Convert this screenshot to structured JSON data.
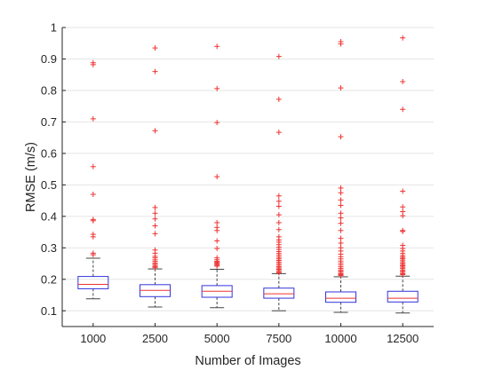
{
  "chart_data": {
    "type": "box",
    "xlabel": "Number of Images",
    "ylabel": "RMSE (m/s)",
    "ylim": [
      0.05,
      1.0
    ],
    "yticks": [
      0.1,
      0.2,
      0.3,
      0.4,
      0.5,
      0.6,
      0.7,
      0.8,
      0.9,
      1
    ],
    "ytick_labels": [
      "0.1",
      "0.2",
      "0.3",
      "0.4",
      "0.5",
      "0.6",
      "0.7",
      "0.8",
      "0.9",
      "1"
    ],
    "grid": "horizontal",
    "categories": [
      "1000",
      "2500",
      "5000",
      "7500",
      "10000",
      "12500"
    ],
    "colors": {
      "box": "#3333dd",
      "median": "#ee3333",
      "whisker": "#444444",
      "outlier": "#ee3333",
      "grid": "#e5e5e5",
      "axis": "#262626"
    },
    "boxes": [
      {
        "category": "1000",
        "q1": 0.17,
        "median": 0.184,
        "q3": 0.209,
        "whisker_low": 0.138,
        "whisker_high": 0.267,
        "outliers": [
          0.888,
          0.882,
          0.71,
          0.558,
          0.47,
          0.39,
          0.386,
          0.343,
          0.335,
          0.283,
          0.278
        ]
      },
      {
        "category": "2500",
        "q1": 0.145,
        "median": 0.165,
        "q3": 0.183,
        "whisker_low": 0.112,
        "whisker_high": 0.233,
        "outliers": [
          0.935,
          0.86,
          0.672,
          0.428,
          0.41,
          0.392,
          0.37,
          0.345,
          0.293,
          0.283,
          0.273,
          0.268,
          0.262,
          0.257,
          0.252,
          0.248,
          0.244,
          0.24,
          0.237
        ]
      },
      {
        "category": "5000",
        "q1": 0.143,
        "median": 0.162,
        "q3": 0.18,
        "whisker_low": 0.11,
        "whisker_high": 0.232,
        "outliers": [
          0.94,
          0.806,
          0.698,
          0.526,
          0.38,
          0.365,
          0.355,
          0.322,
          0.298,
          0.268,
          0.262,
          0.257,
          0.254,
          0.251,
          0.248,
          0.245,
          0.242
        ]
      },
      {
        "category": "7500",
        "q1": 0.14,
        "median": 0.154,
        "q3": 0.172,
        "whisker_low": 0.1,
        "whisker_high": 0.218,
        "outliers": [
          0.908,
          0.772,
          0.667,
          0.465,
          0.448,
          0.432,
          0.405,
          0.38,
          0.358,
          0.335,
          0.325,
          0.318,
          0.31,
          0.302,
          0.295,
          0.288,
          0.282,
          0.276,
          0.27,
          0.265,
          0.26,
          0.255,
          0.25,
          0.245,
          0.24,
          0.236,
          0.232,
          0.228,
          0.224,
          0.221
        ]
      },
      {
        "category": "10000",
        "q1": 0.127,
        "median": 0.14,
        "q3": 0.16,
        "whisker_low": 0.095,
        "whisker_high": 0.208,
        "outliers": [
          0.955,
          0.948,
          0.808,
          0.653,
          0.49,
          0.475,
          0.452,
          0.435,
          0.41,
          0.395,
          0.378,
          0.355,
          0.33,
          0.315,
          0.3,
          0.29,
          0.28,
          0.272,
          0.265,
          0.258,
          0.252,
          0.246,
          0.24,
          0.235,
          0.23,
          0.226,
          0.222,
          0.218,
          0.215,
          0.212
        ]
      },
      {
        "category": "12500",
        "q1": 0.128,
        "median": 0.14,
        "q3": 0.162,
        "whisker_low": 0.093,
        "whisker_high": 0.21,
        "outliers": [
          0.967,
          0.828,
          0.74,
          0.48,
          0.43,
          0.415,
          0.402,
          0.355,
          0.352,
          0.308,
          0.298,
          0.29,
          0.282,
          0.275,
          0.27,
          0.266,
          0.261,
          0.256,
          0.251,
          0.247,
          0.243,
          0.239,
          0.235,
          0.23,
          0.226,
          0.222,
          0.218,
          0.215
        ]
      }
    ]
  }
}
